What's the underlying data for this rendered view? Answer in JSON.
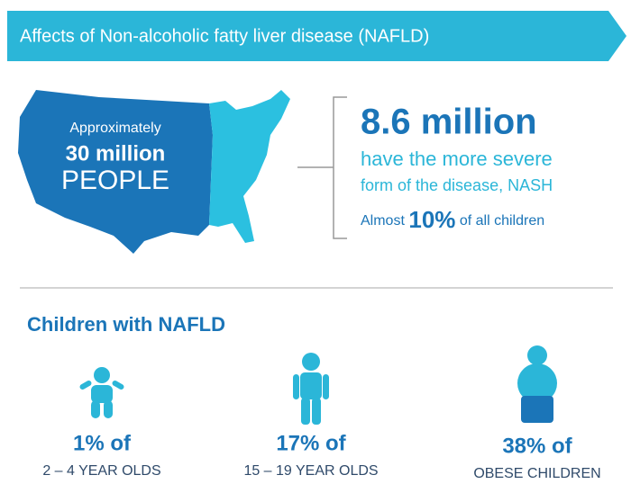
{
  "banner": {
    "title": "Affects of Non-alcoholic fatty liver disease (NAFLD)"
  },
  "map": {
    "line1": "Approximately",
    "line2": "30 million",
    "line3": "PEOPLE"
  },
  "stats": {
    "headline": "8.6 million",
    "line1": "have the more severe",
    "line2": "form of the disease, NASH",
    "children": {
      "prefix": "Almost",
      "value": "10%",
      "suffix": "of all children"
    }
  },
  "section": {
    "title": "Children with NAFLD",
    "groups": [
      {
        "value": "1% of",
        "label": "2 – 4 YEAR OLDS"
      },
      {
        "value": "17% of",
        "label": "15 – 19 YEAR OLDS"
      },
      {
        "value": "38% of",
        "label": "OBESE CHILDREN"
      }
    ]
  }
}
